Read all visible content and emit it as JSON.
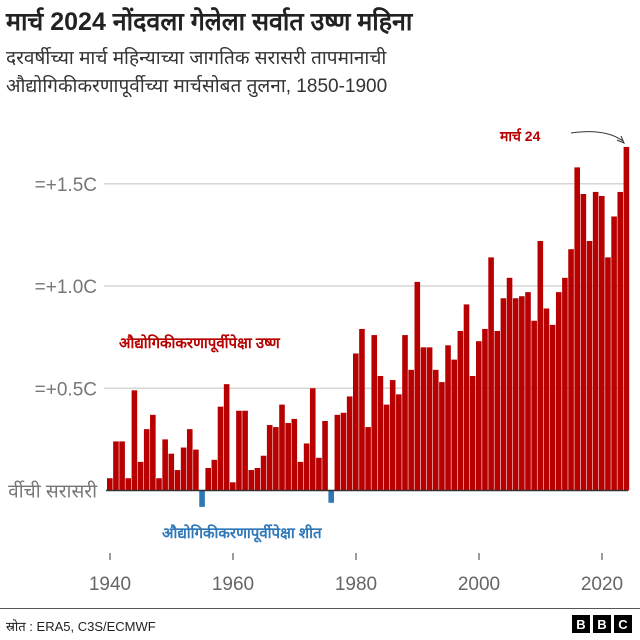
{
  "title": "मार्च 2024 नोंदवला गेलेला सर्वात उष्ण महिना",
  "subtitle_lines": [
    "दरवर्षीच्या मार्च महिन्याच्या जागतिक सरासरी तापमानाची",
    "औद्योगिकीकरणापूर्वीच्या मार्चसोबत तुलना, 1850-1900"
  ],
  "source": "स्रोत : ERA5, C3S/ECMWF",
  "logo": "BBC",
  "colors": {
    "warm": "#b80000",
    "cool": "#2e78b8",
    "grid": "#d6d6d6"
  },
  "chart_data": {
    "type": "bar",
    "title": "मार्च 2024 नोंदवला गेलेला सर्वात उष्ण महिना",
    "x_start": 1940,
    "x_end": 2024,
    "xticks": [
      "1940",
      "1960",
      "1980",
      "2000",
      "2020"
    ],
    "yticks": [
      {
        "value": 0,
        "label": "र्वीची सरासरी"
      },
      {
        "value": 0.5,
        "label": "=+0.5C"
      },
      {
        "value": 1.0,
        "label": "=+1.0C"
      },
      {
        "value": 1.5,
        "label": "=+1.5C"
      }
    ],
    "ylim": [
      -0.1,
      1.7
    ],
    "grid": true,
    "annotations": {
      "warm": "औद्योगिकीकरणापूर्वीपेक्षा उष्ण",
      "cool": "औद्योगिकीकरणापूर्वीपेक्षा शीत",
      "latest": "मार्च 24"
    },
    "values": [
      0.06,
      0.24,
      0.24,
      0.06,
      0.49,
      0.14,
      0.3,
      0.37,
      0.06,
      0.25,
      0.18,
      0.1,
      0.21,
      0.3,
      0.2,
      -0.08,
      0.11,
      0.15,
      0.41,
      0.52,
      0.04,
      0.39,
      0.39,
      0.1,
      0.11,
      0.17,
      0.32,
      0.31,
      0.42,
      0.33,
      0.35,
      0.14,
      0.23,
      0.5,
      0.16,
      0.34,
      -0.06,
      0.37,
      0.38,
      0.46,
      0.67,
      0.79,
      0.31,
      0.76,
      0.56,
      0.42,
      0.54,
      0.47,
      0.76,
      0.59,
      1.02,
      0.7,
      0.7,
      0.59,
      0.53,
      0.71,
      0.64,
      0.78,
      0.91,
      0.56,
      0.73,
      0.79,
      1.14,
      0.78,
      0.94,
      1.04,
      0.94,
      0.95,
      0.97,
      0.83,
      1.22,
      0.89,
      0.81,
      0.97,
      1.04,
      1.18,
      1.58,
      1.45,
      1.22,
      1.46,
      1.44,
      1.14,
      1.34,
      1.46,
      1.68
    ]
  }
}
